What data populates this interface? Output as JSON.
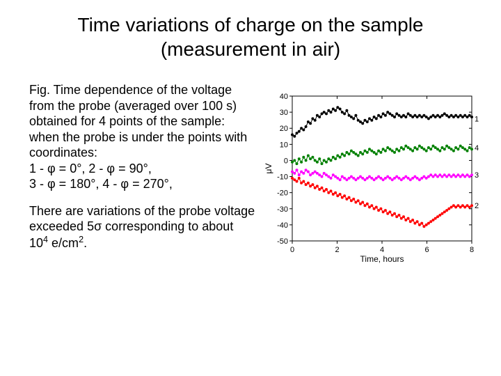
{
  "title": {
    "line1": "Time variations of charge on the sample",
    "line2": "(measurement in air)"
  },
  "caption": {
    "para1": "Fig. Time dependence of the voltage from the probe (averaged over 100 s) obtained for 4 points of the sample: when the probe is under the points with coordinates:",
    "coords": "1 - φ = 0°, 2 - φ = 90°,",
    "coords2": "3 - φ = 180°, 4 - φ = 270°,",
    "para2a": "There are variations of the probe voltage exceeded 5σ corresponding to about 10",
    "para2exp": "4",
    "para2b": " e/cm",
    "para2exp2": "2",
    "para2c": "."
  },
  "chart": {
    "type": "scatter-line",
    "background_color": "#ffffff",
    "axis_color": "#000000",
    "tick_fontsize": 11,
    "label_fontsize": 12,
    "xlabel": "Time, hours",
    "ylabel": "μV",
    "xlim": [
      0,
      8
    ],
    "ylim": [
      -50,
      40
    ],
    "xticks": [
      0,
      2,
      4,
      6,
      8
    ],
    "yticks": [
      -50,
      -40,
      -30,
      -20,
      -10,
      0,
      10,
      20,
      30,
      40
    ],
    "marker_size": 2.0,
    "line_width": 1.0,
    "series": [
      {
        "name": "1",
        "color": "#000000",
        "label_pos": [
          8.15,
          26
        ],
        "y": [
          16,
          15,
          17,
          18,
          20,
          19,
          21,
          24,
          23,
          26,
          25,
          28,
          27,
          29,
          30,
          29,
          31,
          30,
          32,
          31,
          33,
          32,
          30,
          29,
          31,
          28,
          27,
          26,
          28,
          25,
          24,
          23,
          25,
          24,
          26,
          25,
          27,
          26,
          28,
          27,
          29,
          28,
          30,
          29,
          28,
          27,
          29,
          28,
          27,
          28,
          27,
          29,
          28,
          27,
          28,
          27,
          28,
          27,
          28,
          27,
          26,
          27,
          28,
          27,
          28,
          27,
          28,
          29,
          28,
          27,
          28,
          27,
          28,
          27,
          28,
          27,
          28,
          27,
          28,
          27
        ]
      },
      {
        "name": "4",
        "color": "#008000",
        "label_pos": [
          8.15,
          8
        ],
        "y": [
          -1,
          0,
          -2,
          1,
          -1,
          2,
          0,
          3,
          1,
          2,
          0,
          -1,
          1,
          -2,
          0,
          -1,
          1,
          0,
          2,
          1,
          3,
          2,
          4,
          3,
          5,
          4,
          6,
          5,
          4,
          3,
          5,
          4,
          6,
          5,
          7,
          6,
          5,
          4,
          6,
          5,
          7,
          6,
          8,
          7,
          6,
          5,
          7,
          6,
          8,
          7,
          9,
          8,
          7,
          6,
          8,
          7,
          9,
          8,
          7,
          6,
          8,
          7,
          9,
          8,
          7,
          6,
          8,
          7,
          9,
          8,
          7,
          6,
          8,
          7,
          9,
          8,
          7,
          6,
          8,
          7
        ]
      },
      {
        "name": "3",
        "color": "#ff00ff",
        "label_pos": [
          8.15,
          -9
        ],
        "y": [
          -7,
          -8,
          -6,
          -9,
          -7,
          -8,
          -6,
          -7,
          -9,
          -8,
          -7,
          -8,
          -9,
          -10,
          -8,
          -9,
          -10,
          -11,
          -9,
          -10,
          -11,
          -12,
          -10,
          -11,
          -12,
          -11,
          -10,
          -11,
          -12,
          -11,
          -10,
          -11,
          -12,
          -11,
          -10,
          -11,
          -12,
          -11,
          -10,
          -11,
          -12,
          -11,
          -10,
          -11,
          -12,
          -11,
          -10,
          -11,
          -12,
          -11,
          -10,
          -11,
          -12,
          -11,
          -10,
          -11,
          -12,
          -11,
          -10,
          -11,
          -10,
          -9,
          -10,
          -9,
          -10,
          -9,
          -10,
          -9,
          -10,
          -9,
          -10,
          -9,
          -10,
          -9,
          -10,
          -9,
          -10,
          -9,
          -10,
          -9
        ]
      },
      {
        "name": "2",
        "color": "#ff0000",
        "label_pos": [
          8.15,
          -28
        ],
        "y": [
          -11,
          -12,
          -13,
          -11,
          -14,
          -13,
          -15,
          -14,
          -16,
          -15,
          -17,
          -16,
          -18,
          -17,
          -19,
          -18,
          -20,
          -19,
          -21,
          -20,
          -22,
          -21,
          -23,
          -22,
          -24,
          -23,
          -25,
          -24,
          -26,
          -25,
          -27,
          -26,
          -28,
          -27,
          -29,
          -28,
          -30,
          -29,
          -31,
          -30,
          -32,
          -31,
          -33,
          -32,
          -34,
          -33,
          -35,
          -34,
          -36,
          -35,
          -37,
          -36,
          -38,
          -37,
          -39,
          -38,
          -40,
          -39,
          -41,
          -40,
          -39,
          -38,
          -37,
          -36,
          -35,
          -34,
          -33,
          -32,
          -31,
          -30,
          -29,
          -28,
          -29,
          -28,
          -29,
          -28,
          -29,
          -28,
          -29,
          -28
        ]
      }
    ]
  }
}
